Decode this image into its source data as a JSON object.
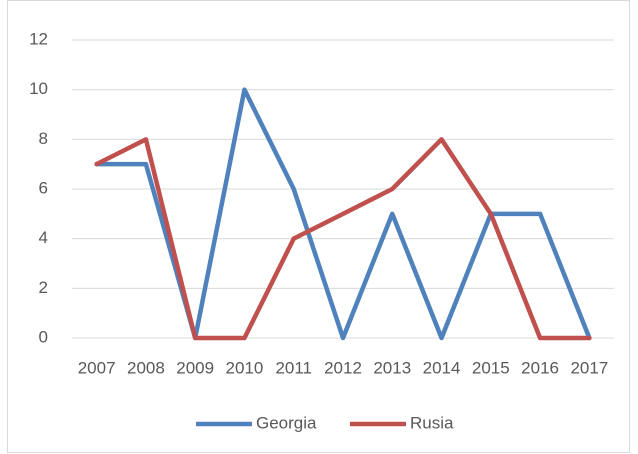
{
  "chart_data": {
    "type": "line",
    "categories": [
      "2007",
      "2008",
      "2009",
      "2010",
      "2011",
      "2012",
      "2013",
      "2014",
      "2015",
      "2016",
      "2017"
    ],
    "series": [
      {
        "name": "Georgia",
        "color": "#4f81bd",
        "values": [
          7,
          7,
          0,
          10,
          6,
          0,
          5,
          0,
          5,
          5,
          0
        ]
      },
      {
        "name": "Rusia",
        "color": "#c0504d",
        "values": [
          7,
          8,
          0,
          0,
          4,
          5,
          6,
          8,
          5,
          0,
          0
        ]
      }
    ],
    "ylim": [
      0,
      12
    ],
    "yticks": [
      0,
      2,
      4,
      6,
      8,
      10,
      12
    ],
    "grid": true,
    "legend": "bottom"
  }
}
